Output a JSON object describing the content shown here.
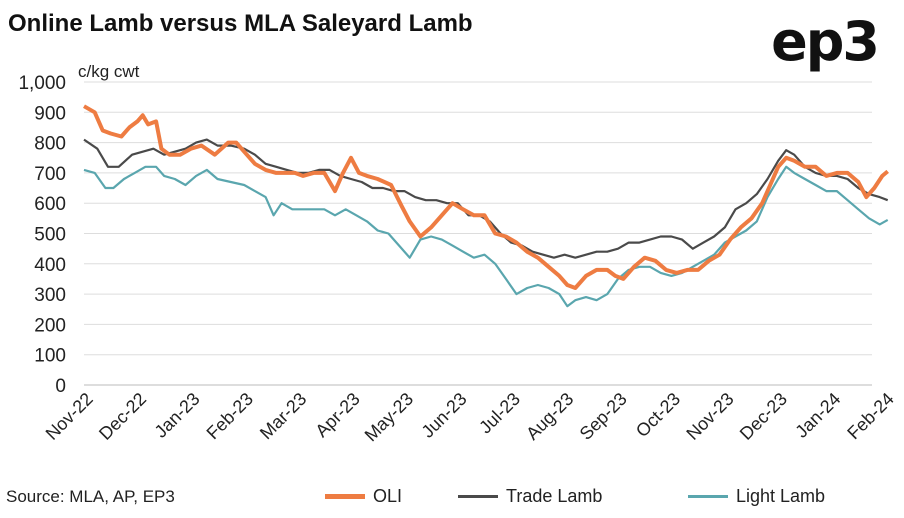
{
  "header": {
    "title": "Online Lamb versus MLA Saleyard Lamb",
    "logo": "ep3"
  },
  "source": "Source: MLA, AP, EP3",
  "colors": {
    "oli": "#EE7C42",
    "trade": "#4A4A4A",
    "light": "#5AA6AE",
    "grid": "#dddddd"
  },
  "chart_data": {
    "type": "line",
    "title": "Online Lamb versus MLA Saleyard Lamb",
    "ylabel": "c/kg cwt",
    "xlabel": "",
    "ylim": [
      0,
      1000
    ],
    "yticks": [
      "1,000",
      "900",
      "800",
      "700",
      "600",
      "500",
      "400",
      "300",
      "200",
      "100",
      "0"
    ],
    "xticks": [
      "Nov-22",
      "Dec-22",
      "Jan-23",
      "Feb-23",
      "Mar-23",
      "Apr-23",
      "May-23",
      "Jun-23",
      "Jul-23",
      "Aug-23",
      "Sep-23",
      "Oct-23",
      "Nov-23",
      "Dec-23",
      "Jan-24",
      "Feb-24"
    ],
    "grid": "horizontal",
    "legend_position": "bottom",
    "series": [
      {
        "name": "OLI",
        "color": "#EE7C42",
        "points": [
          [
            0,
            920
          ],
          [
            0.2,
            900
          ],
          [
            0.35,
            840
          ],
          [
            0.5,
            830
          ],
          [
            0.7,
            820
          ],
          [
            0.85,
            850
          ],
          [
            1.0,
            870
          ],
          [
            1.1,
            890
          ],
          [
            1.2,
            860
          ],
          [
            1.35,
            870
          ],
          [
            1.45,
            780
          ],
          [
            1.6,
            760
          ],
          [
            1.8,
            760
          ],
          [
            2.0,
            780
          ],
          [
            2.2,
            790
          ],
          [
            2.45,
            760
          ],
          [
            2.7,
            800
          ],
          [
            2.85,
            800
          ],
          [
            3.0,
            770
          ],
          [
            3.2,
            730
          ],
          [
            3.4,
            710
          ],
          [
            3.6,
            700
          ],
          [
            3.8,
            700
          ],
          [
            3.95,
            700
          ],
          [
            4.1,
            690
          ],
          [
            4.3,
            700
          ],
          [
            4.5,
            700
          ],
          [
            4.7,
            640
          ],
          [
            4.85,
            700
          ],
          [
            5.0,
            750
          ],
          [
            5.15,
            700
          ],
          [
            5.3,
            690
          ],
          [
            5.5,
            680
          ],
          [
            5.75,
            660
          ],
          [
            5.95,
            590
          ],
          [
            6.1,
            540
          ],
          [
            6.3,
            490
          ],
          [
            6.5,
            520
          ],
          [
            6.7,
            560
          ],
          [
            6.9,
            600
          ],
          [
            7.1,
            580
          ],
          [
            7.3,
            560
          ],
          [
            7.5,
            560
          ],
          [
            7.7,
            500
          ],
          [
            7.9,
            490
          ],
          [
            8.1,
            470
          ],
          [
            8.3,
            440
          ],
          [
            8.5,
            420
          ],
          [
            8.7,
            390
          ],
          [
            8.9,
            360
          ],
          [
            9.05,
            330
          ],
          [
            9.2,
            320
          ],
          [
            9.4,
            360
          ],
          [
            9.6,
            380
          ],
          [
            9.8,
            380
          ],
          [
            9.95,
            360
          ],
          [
            10.1,
            350
          ],
          [
            10.3,
            390
          ],
          [
            10.5,
            420
          ],
          [
            10.7,
            410
          ],
          [
            10.9,
            380
          ],
          [
            11.1,
            370
          ],
          [
            11.3,
            380
          ],
          [
            11.5,
            380
          ],
          [
            11.7,
            410
          ],
          [
            11.9,
            430
          ],
          [
            12.1,
            480
          ],
          [
            12.3,
            520
          ],
          [
            12.5,
            550
          ],
          [
            12.7,
            600
          ],
          [
            12.85,
            660
          ],
          [
            13.0,
            720
          ],
          [
            13.15,
            750
          ],
          [
            13.3,
            740
          ],
          [
            13.5,
            720
          ],
          [
            13.7,
            720
          ],
          [
            13.9,
            690
          ],
          [
            14.1,
            700
          ],
          [
            14.3,
            700
          ],
          [
            14.5,
            670
          ],
          [
            14.65,
            620
          ],
          [
            14.8,
            650
          ],
          [
            14.95,
            690
          ],
          [
            15.05,
            705
          ]
        ]
      },
      {
        "name": "Trade Lamb",
        "color": "#4A4A4A",
        "points": [
          [
            0,
            810
          ],
          [
            0.25,
            780
          ],
          [
            0.45,
            720
          ],
          [
            0.65,
            720
          ],
          [
            0.9,
            760
          ],
          [
            1.1,
            770
          ],
          [
            1.3,
            780
          ],
          [
            1.5,
            760
          ],
          [
            1.7,
            770
          ],
          [
            1.9,
            780
          ],
          [
            2.1,
            800
          ],
          [
            2.3,
            810
          ],
          [
            2.5,
            790
          ],
          [
            2.75,
            790
          ],
          [
            3.0,
            780
          ],
          [
            3.2,
            760
          ],
          [
            3.4,
            730
          ],
          [
            3.6,
            720
          ],
          [
            3.8,
            710
          ],
          [
            4.0,
            700
          ],
          [
            4.2,
            700
          ],
          [
            4.4,
            710
          ],
          [
            4.6,
            710
          ],
          [
            4.8,
            690
          ],
          [
            5.0,
            680
          ],
          [
            5.2,
            670
          ],
          [
            5.4,
            650
          ],
          [
            5.6,
            650
          ],
          [
            5.8,
            640
          ],
          [
            6.0,
            640
          ],
          [
            6.2,
            620
          ],
          [
            6.4,
            610
          ],
          [
            6.6,
            610
          ],
          [
            6.8,
            600
          ],
          [
            7.0,
            600
          ],
          [
            7.2,
            560
          ],
          [
            7.4,
            560
          ],
          [
            7.6,
            540
          ],
          [
            7.8,
            500
          ],
          [
            8.0,
            470
          ],
          [
            8.2,
            460
          ],
          [
            8.4,
            440
          ],
          [
            8.6,
            430
          ],
          [
            8.8,
            420
          ],
          [
            9.0,
            430
          ],
          [
            9.2,
            420
          ],
          [
            9.4,
            430
          ],
          [
            9.6,
            440
          ],
          [
            9.8,
            440
          ],
          [
            10.0,
            450
          ],
          [
            10.2,
            470
          ],
          [
            10.4,
            470
          ],
          [
            10.6,
            480
          ],
          [
            10.8,
            490
          ],
          [
            11.0,
            490
          ],
          [
            11.2,
            480
          ],
          [
            11.4,
            450
          ],
          [
            11.6,
            470
          ],
          [
            11.8,
            490
          ],
          [
            12.0,
            520
          ],
          [
            12.2,
            580
          ],
          [
            12.4,
            600
          ],
          [
            12.6,
            630
          ],
          [
            12.8,
            680
          ],
          [
            13.0,
            740
          ],
          [
            13.15,
            775
          ],
          [
            13.3,
            760
          ],
          [
            13.5,
            720
          ],
          [
            13.7,
            700
          ],
          [
            13.9,
            690
          ],
          [
            14.1,
            690
          ],
          [
            14.3,
            680
          ],
          [
            14.5,
            650
          ],
          [
            14.7,
            630
          ],
          [
            14.9,
            620
          ],
          [
            15.05,
            610
          ]
        ]
      },
      {
        "name": "Light Lamb",
        "color": "#5AA6AE",
        "points": [
          [
            0,
            710
          ],
          [
            0.2,
            700
          ],
          [
            0.4,
            650
          ],
          [
            0.55,
            650
          ],
          [
            0.75,
            680
          ],
          [
            0.95,
            700
          ],
          [
            1.15,
            720
          ],
          [
            1.35,
            720
          ],
          [
            1.5,
            690
          ],
          [
            1.7,
            680
          ],
          [
            1.9,
            660
          ],
          [
            2.1,
            690
          ],
          [
            2.3,
            710
          ],
          [
            2.5,
            680
          ],
          [
            2.75,
            670
          ],
          [
            3.0,
            660
          ],
          [
            3.2,
            640
          ],
          [
            3.4,
            620
          ],
          [
            3.55,
            560
          ],
          [
            3.7,
            600
          ],
          [
            3.9,
            580
          ],
          [
            4.1,
            580
          ],
          [
            4.3,
            580
          ],
          [
            4.5,
            580
          ],
          [
            4.7,
            560
          ],
          [
            4.9,
            580
          ],
          [
            5.1,
            560
          ],
          [
            5.3,
            540
          ],
          [
            5.5,
            510
          ],
          [
            5.7,
            500
          ],
          [
            5.9,
            460
          ],
          [
            6.1,
            420
          ],
          [
            6.3,
            480
          ],
          [
            6.5,
            490
          ],
          [
            6.7,
            480
          ],
          [
            6.9,
            460
          ],
          [
            7.1,
            440
          ],
          [
            7.3,
            420
          ],
          [
            7.5,
            430
          ],
          [
            7.7,
            400
          ],
          [
            7.9,
            350
          ],
          [
            8.1,
            300
          ],
          [
            8.3,
            320
          ],
          [
            8.5,
            330
          ],
          [
            8.7,
            320
          ],
          [
            8.9,
            300
          ],
          [
            9.05,
            260
          ],
          [
            9.2,
            280
          ],
          [
            9.4,
            290
          ],
          [
            9.6,
            280
          ],
          [
            9.8,
            300
          ],
          [
            10.0,
            350
          ],
          [
            10.2,
            380
          ],
          [
            10.4,
            390
          ],
          [
            10.6,
            390
          ],
          [
            10.8,
            370
          ],
          [
            11.0,
            360
          ],
          [
            11.2,
            370
          ],
          [
            11.4,
            390
          ],
          [
            11.6,
            410
          ],
          [
            11.8,
            430
          ],
          [
            12.0,
            470
          ],
          [
            12.2,
            490
          ],
          [
            12.4,
            510
          ],
          [
            12.6,
            540
          ],
          [
            12.8,
            620
          ],
          [
            13.0,
            680
          ],
          [
            13.15,
            720
          ],
          [
            13.3,
            700
          ],
          [
            13.5,
            680
          ],
          [
            13.7,
            660
          ],
          [
            13.9,
            640
          ],
          [
            14.1,
            640
          ],
          [
            14.3,
            610
          ],
          [
            14.5,
            580
          ],
          [
            14.7,
            550
          ],
          [
            14.9,
            530
          ],
          [
            15.05,
            545
          ]
        ]
      }
    ]
  }
}
